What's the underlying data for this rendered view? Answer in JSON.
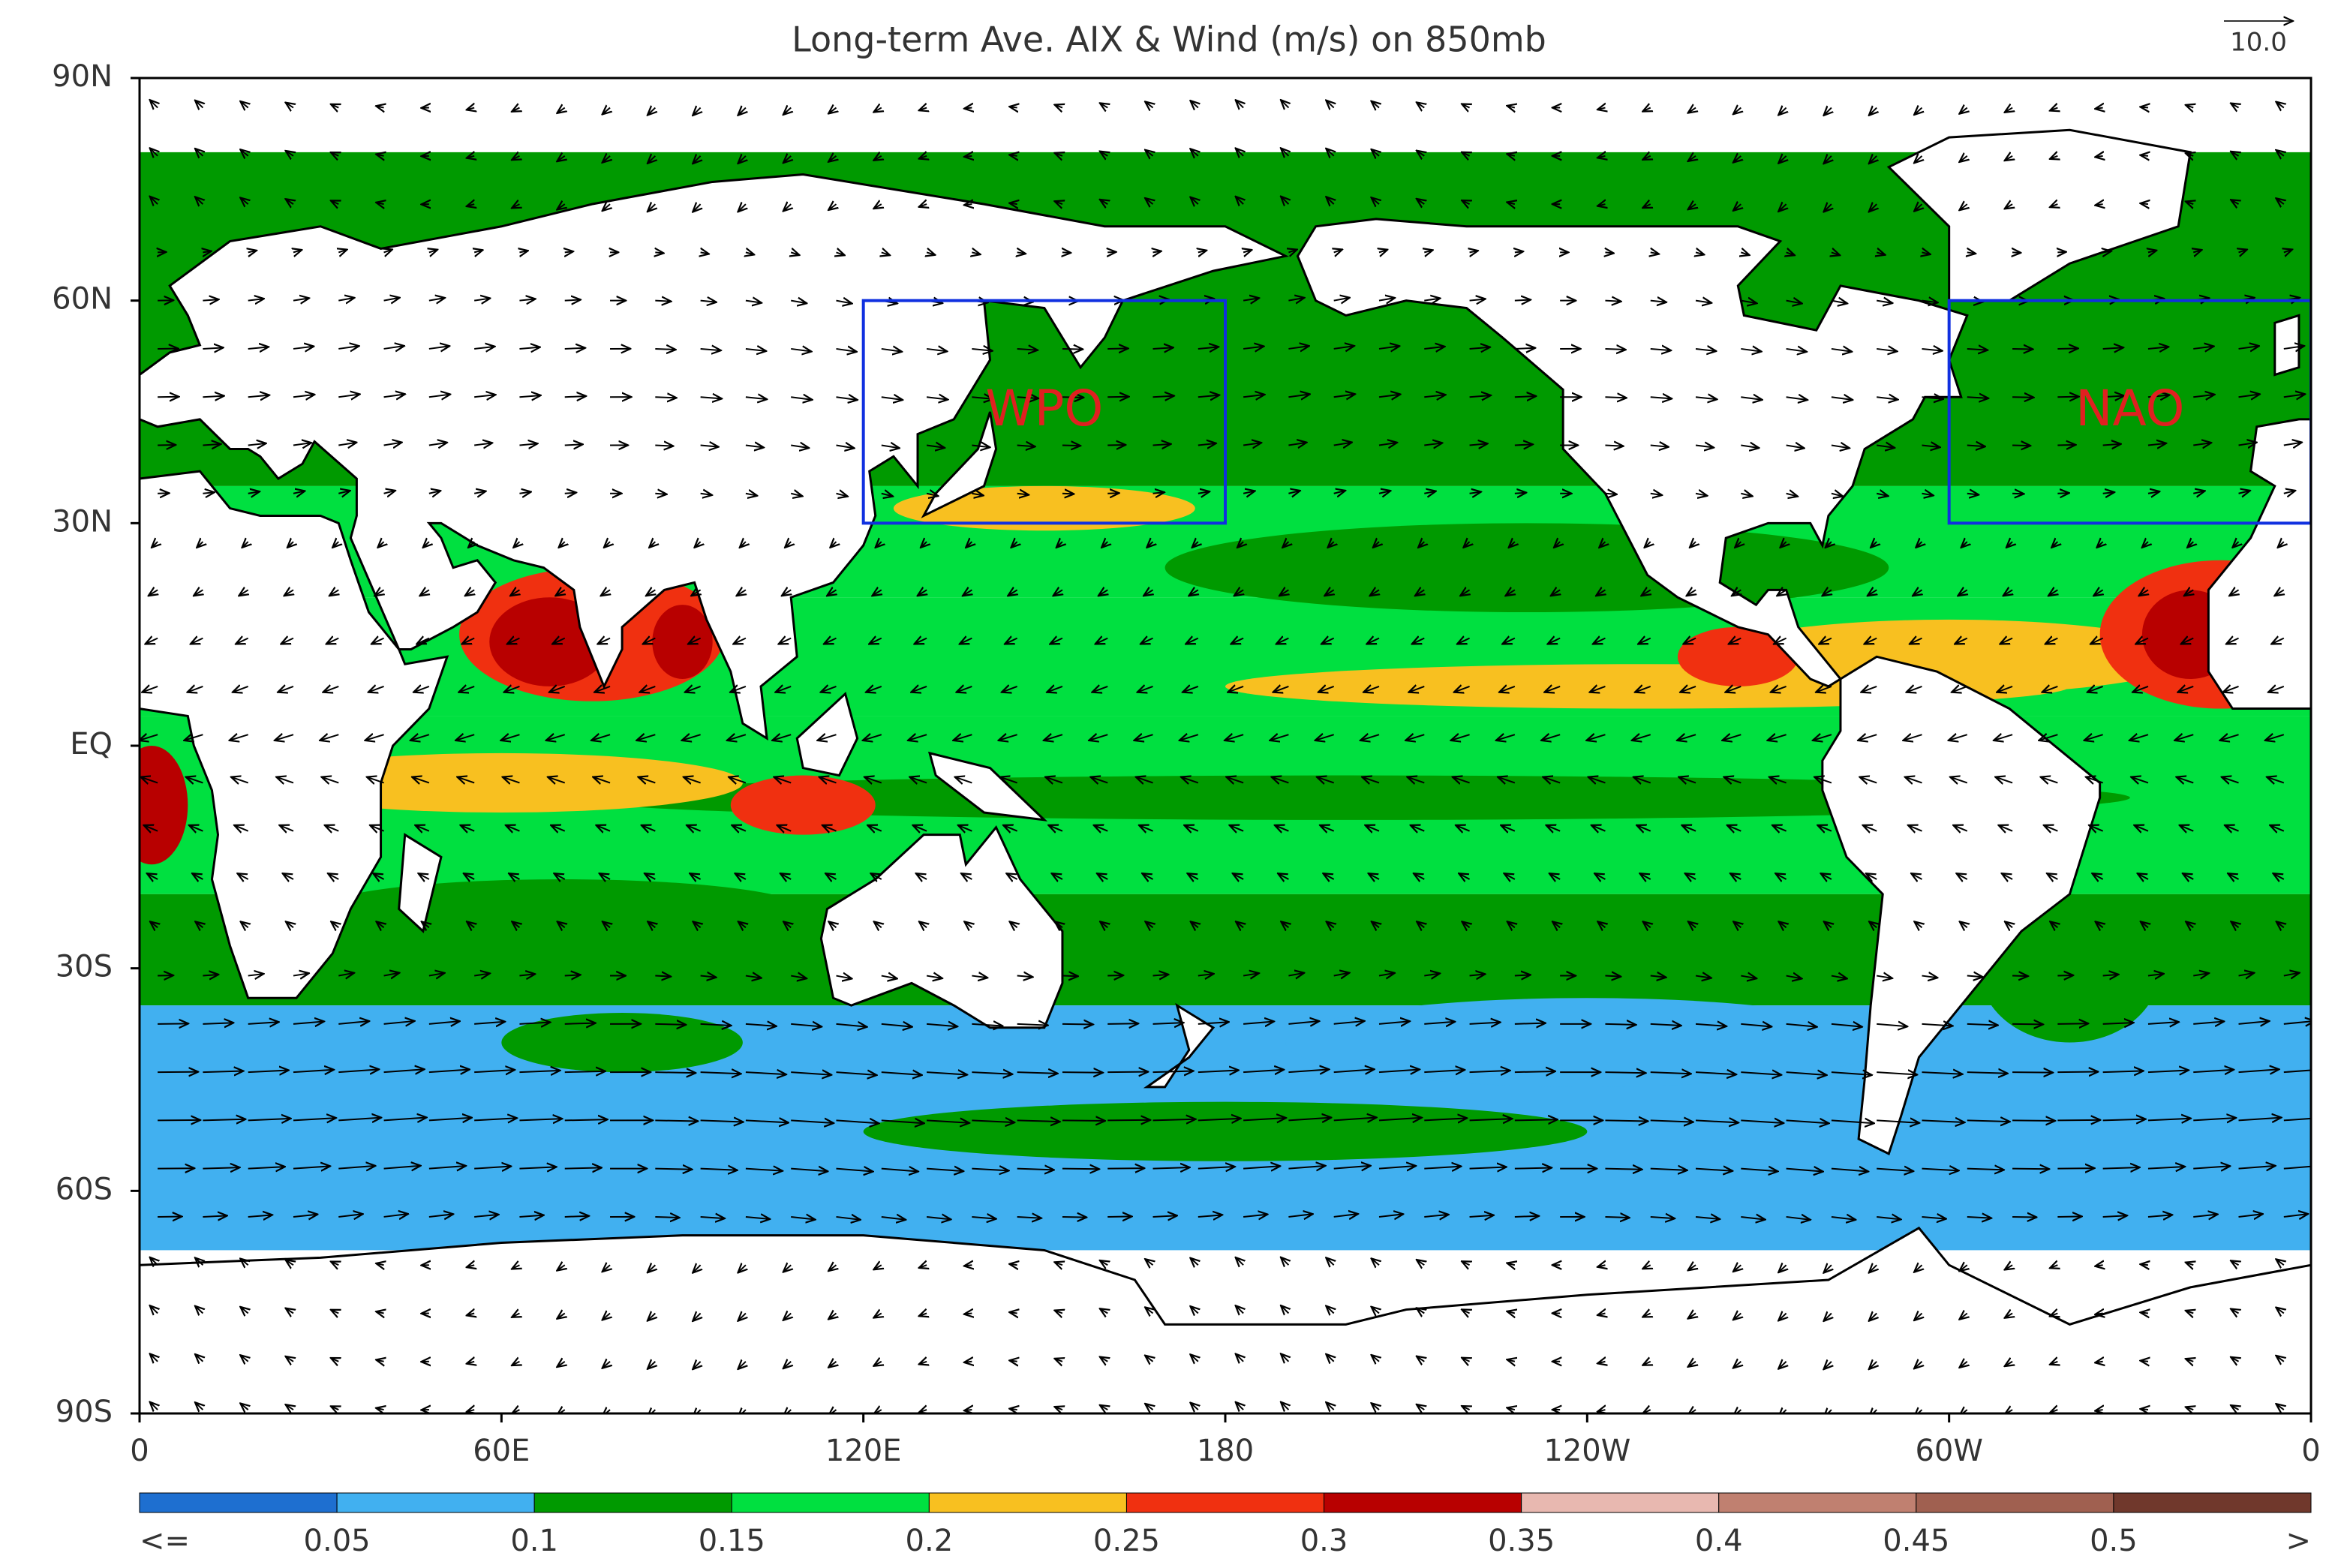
{
  "title": "Long-term Ave. AIX & Wind (m/s) on 850mb",
  "vector_reference": "10.0",
  "lat_labels": [
    "90N",
    "60N",
    "30N",
    "EQ",
    "30S",
    "60S",
    "90S"
  ],
  "lon_labels": [
    "0",
    "60E",
    "120E",
    "180",
    "120W",
    "60W",
    "0"
  ],
  "regions": [
    {
      "label": "WPO"
    },
    {
      "label": "NAO"
    }
  ],
  "colorbar": {
    "labels": [
      "<=",
      "0.05",
      "0.1",
      "0.15",
      "0.2",
      "0.25",
      "0.3",
      "0.35",
      "0.4",
      "0.45",
      "0.5",
      ">"
    ],
    "colors": [
      "#1e6fd0",
      "#41b0f0",
      "#009a00",
      "#00e040",
      "#f8c020",
      "#f03010",
      "#b80000",
      "#e8b8b0",
      "#c08070",
      "#a06050",
      "#70382c"
    ]
  }
}
